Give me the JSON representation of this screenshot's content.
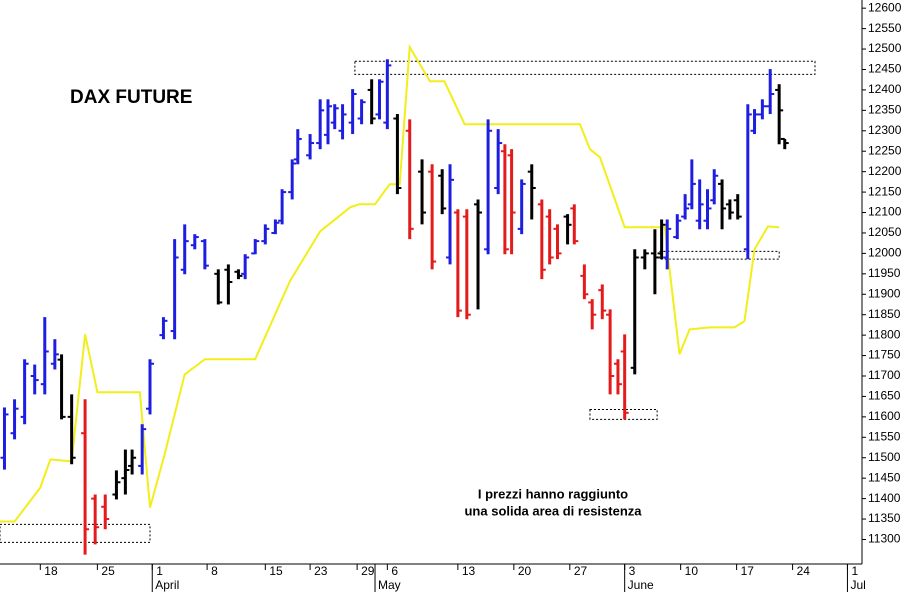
{
  "chart_data": {
    "type": "ohlc",
    "title": "DAX FUTURE",
    "note": [
      "I prezzi hanno raggiunto",
      "una solida area di resistenza"
    ],
    "xlim": [
      0,
      77
    ],
    "ylim": [
      11240,
      12620
    ],
    "yticks": [
      11300,
      11350,
      11400,
      11450,
      11500,
      11550,
      11600,
      11650,
      11700,
      11750,
      11800,
      11850,
      11900,
      11950,
      12000,
      12050,
      12100,
      12150,
      12200,
      12250,
      12300,
      12350,
      12400,
      12450,
      12500,
      12550,
      12600
    ],
    "xticks": [
      {
        "value": 3.6,
        "label": "18"
      },
      {
        "value": 8.7,
        "label": "25"
      },
      {
        "value": 13.6,
        "label": "1"
      },
      {
        "value": 18.5,
        "label": "8"
      },
      {
        "value": 23.7,
        "label": "15"
      },
      {
        "value": 27.7,
        "label": "23"
      },
      {
        "value": 31.9,
        "label": "29"
      },
      {
        "value": 34.6,
        "label": "6"
      },
      {
        "value": 40.9,
        "label": "13"
      },
      {
        "value": 45.9,
        "label": "20"
      },
      {
        "value": 50.9,
        "label": "27"
      },
      {
        "value": 55.8,
        "label": "3"
      },
      {
        "value": 60.8,
        "label": "10"
      },
      {
        "value": 65.8,
        "label": "17"
      },
      {
        "value": 70.8,
        "label": "24"
      },
      {
        "value": 75.7,
        "label": "1"
      }
    ],
    "month_ticks": [
      {
        "value": 13.6,
        "label": "April"
      },
      {
        "value": 33.5,
        "label": "May"
      },
      {
        "value": 55.8,
        "label": "June"
      },
      {
        "value": 75.7,
        "label": "Jul"
      }
    ],
    "bars": {
      "x": [
        0.4,
        1.3,
        2.2,
        3.1,
        4.0,
        4.9,
        5.5,
        6.4,
        7.6,
        8.5,
        9.4,
        10.4,
        11.2,
        11.8,
        12.7,
        13.4,
        14.6,
        15.6,
        16.5,
        17.4,
        18.3,
        19.5,
        20.4,
        21.3,
        21.9,
        22.8,
        23.7,
        24.6,
        25.2,
        26.1,
        26.6,
        27.7,
        28.6,
        29.3,
        29.9,
        30.6,
        31.5,
        32.3,
        33.2,
        33.9,
        34.6,
        35.5,
        36.6,
        37.7,
        38.6,
        39.5,
        40.2,
        40.9,
        41.7,
        42.7,
        43.6,
        44.5,
        45.1,
        45.7,
        46.6,
        47.5,
        48.4,
        49.1,
        49.8,
        50.7,
        51.3,
        52.2,
        52.9,
        53.8,
        54.5,
        55.2,
        55.8,
        56.7,
        57.6,
        58.5,
        59.1,
        59.6,
        60.5,
        61.2,
        61.8,
        62.5,
        63.2,
        63.8,
        64.5,
        65.2,
        65.9,
        66.8,
        67.4,
        68.1,
        68.8,
        69.6,
        70.1
      ],
      "open": [
        11500,
        11560,
        11600,
        11700,
        11680,
        11730,
        11740,
        11600,
        11560,
        11400,
        11380,
        11410,
        11450,
        11480,
        11480,
        11620,
        11800,
        11810,
        11960,
        12020,
        12030,
        11950,
        11960,
        11955,
        11950,
        12000,
        12030,
        12050,
        12080,
        12150,
        12230,
        12240,
        12270,
        12290,
        12320,
        12300,
        12320,
        12330,
        12400,
        12340,
        12320,
        12330,
        12300,
        12200,
        12200,
        12190,
        11990,
        12100,
        12090,
        12120,
        12010,
        12160,
        12250,
        12240,
        12060,
        12200,
        12120,
        12090,
        12060,
        12090,
        12110,
        11945,
        11880,
        11910,
        11850,
        11730,
        11760,
        11720,
        11990,
        12000,
        12000,
        11990,
        12040,
        12090,
        12120,
        12080,
        12080,
        12130,
        12170,
        12120,
        12130,
        12010,
        12300,
        12340,
        12360,
        12400,
        12280
      ],
      "high": [
        11623,
        11643,
        11741,
        11728,
        11844,
        11790,
        11753,
        11655,
        11643,
        11410,
        11410,
        11469,
        11520,
        11520,
        11582,
        11741,
        11844,
        12035,
        12071,
        12047,
        12035,
        11961,
        11973,
        11961,
        11998,
        12035,
        12071,
        12083,
        12157,
        12230,
        12304,
        12292,
        12377,
        12377,
        12365,
        12365,
        12402,
        12377,
        12426,
        12426,
        12475,
        12341,
        12328,
        12230,
        12218,
        12206,
        12218,
        12108,
        12108,
        12132,
        12328,
        12304,
        12267,
        12255,
        12181,
        12218,
        12132,
        12108,
        12071,
        12096,
        12120,
        11973,
        11888,
        11924,
        11863,
        11741,
        11802,
        12010,
        12010,
        12059,
        12083,
        12083,
        12096,
        12145,
        12230,
        12181,
        12157,
        12206,
        12181,
        12132,
        12145,
        12365,
        12353,
        12377,
        12451,
        12414,
        12280
      ],
      "low": [
        11471,
        11545,
        11582,
        11655,
        11655,
        11716,
        11594,
        11484,
        11263,
        11288,
        11325,
        11398,
        11410,
        11459,
        11459,
        11606,
        11790,
        11790,
        11949,
        12010,
        11961,
        11875,
        11875,
        11937,
        11937,
        11998,
        12022,
        12047,
        12071,
        12132,
        12218,
        12230,
        12255,
        12267,
        12304,
        12279,
        12292,
        12316,
        12316,
        12328,
        12304,
        12145,
        12035,
        12071,
        11961,
        12096,
        11973,
        11844,
        11839,
        11863,
        11998,
        12145,
        11998,
        11998,
        12047,
        12083,
        11937,
        11973,
        11986,
        12022,
        12022,
        11888,
        11814,
        11839,
        11655,
        11655,
        11594,
        11704,
        11961,
        11900,
        11986,
        11961,
        12035,
        12083,
        12108,
        12059,
        12059,
        12120,
        12059,
        12083,
        12083,
        11986,
        12292,
        12328,
        12341,
        12267,
        12255
      ],
      "close": [
        11606,
        11620,
        11730,
        11690,
        11760,
        11753,
        11600,
        11500,
        11325,
        11330,
        11350,
        11440,
        11470,
        11500,
        11570,
        11730,
        11835,
        11990,
        12030,
        12040,
        11970,
        11880,
        11930,
        11945,
        11990,
        12030,
        12060,
        12075,
        12150,
        12220,
        12280,
        12270,
        12350,
        12360,
        12355,
        12340,
        12390,
        12370,
        12330,
        12420,
        12460,
        12160,
        12060,
        12100,
        11980,
        12110,
        12180,
        11860,
        11850,
        12100,
        12300,
        12270,
        12010,
        12100,
        12170,
        12160,
        11960,
        11990,
        12000,
        12070,
        12030,
        11900,
        11850,
        11860,
        11700,
        11680,
        11610,
        11990,
        12000,
        11990,
        12070,
        12060,
        12080,
        12110,
        12170,
        12120,
        12110,
        12190,
        12110,
        12100,
        12090,
        12340,
        12340,
        12360,
        12390,
        12350,
        12270
      ],
      "colors": [
        "#1e1ee0",
        "#1e1ee0",
        "#1e1ee0",
        "#1e1ee0",
        "#1e1ee0",
        "#1e1ee0",
        "#000000",
        "#000000",
        "#e41b1b",
        "#e41b1b",
        "#e41b1b",
        "#000000",
        "#000000",
        "#000000",
        "#1e1ee0",
        "#1e1ee0",
        "#1e1ee0",
        "#1e1ee0",
        "#1e1ee0",
        "#1e1ee0",
        "#1e1ee0",
        "#000000",
        "#000000",
        "#000000",
        "#1e1ee0",
        "#1e1ee0",
        "#1e1ee0",
        "#1e1ee0",
        "#1e1ee0",
        "#1e1ee0",
        "#1e1ee0",
        "#1e1ee0",
        "#1e1ee0",
        "#1e1ee0",
        "#1e1ee0",
        "#1e1ee0",
        "#1e1ee0",
        "#1e1ee0",
        "#000000",
        "#1e1ee0",
        "#1e1ee0",
        "#000000",
        "#e41b1b",
        "#000000",
        "#e41b1b",
        "#000000",
        "#1e1ee0",
        "#e41b1b",
        "#e41b1b",
        "#000000",
        "#1e1ee0",
        "#1e1ee0",
        "#e41b1b",
        "#e41b1b",
        "#1e1ee0",
        "#000000",
        "#e41b1b",
        "#e41b1b",
        "#e41b1b",
        "#000000",
        "#e41b1b",
        "#e41b1b",
        "#e41b1b",
        "#e41b1b",
        "#e41b1b",
        "#e41b1b",
        "#e41b1b",
        "#000000",
        "#000000",
        "#000000",
        "#000000",
        "#1e1ee0",
        "#1e1ee0",
        "#1e1ee0",
        "#1e1ee0",
        "#1e1ee0",
        "#1e1ee0",
        "#1e1ee0",
        "#000000",
        "#000000",
        "#000000",
        "#1e1ee0",
        "#1e1ee0",
        "#1e1ee0",
        "#1e1ee0",
        "#000000",
        "#000000"
      ]
    },
    "stop_line": {
      "color": "#f2ee1a",
      "x": [
        0,
        1.3,
        3.6,
        4.5,
        6.4,
        7.6,
        8.7,
        12.5,
        13.4,
        14.7,
        16.5,
        18.3,
        22.8,
        25.9,
        28.6,
        31.3,
        32.1,
        33.5,
        34.8,
        35.7,
        36.6,
        38.4,
        39.7,
        41.5,
        51.8,
        52.7,
        53.6,
        55.8,
        59.4,
        59.6,
        60.7,
        61.6,
        63.4,
        65.6,
        66.5,
        67.4,
        68.6,
        69.6
      ],
      "values": [
        11344,
        11344,
        11427,
        11496,
        11491,
        11802,
        11660,
        11660,
        11378,
        11508,
        11704,
        11741,
        11741,
        11932,
        12054,
        12113,
        12120,
        12120,
        12169,
        12169,
        12505,
        12421,
        12421,
        12316,
        12316,
        12255,
        12235,
        12064,
        12064,
        12010,
        11753,
        11814,
        11819,
        11819,
        11834,
        12010,
        12066,
        12064
      ]
    },
    "zones": [
      {
        "x": [
          0,
          13.4
        ],
        "y": [
          11293,
          11337
        ]
      },
      {
        "x": [
          31.7,
          72.8
        ],
        "y": [
          12438,
          12470
        ]
      },
      {
        "x": [
          52.7,
          58.7
        ],
        "y": [
          11594,
          11618
        ]
      },
      {
        "x": [
          58.9,
          69.6
        ],
        "y": [
          11986,
          12005
        ]
      }
    ]
  }
}
